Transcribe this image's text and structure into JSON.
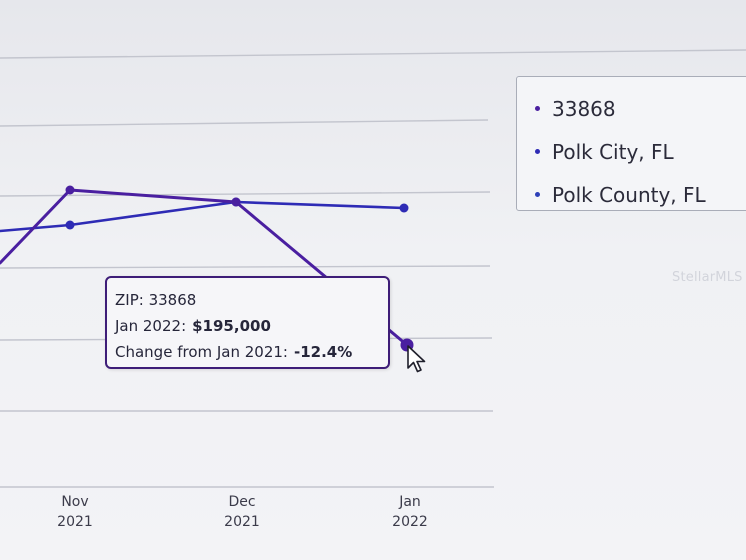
{
  "chart_data": {
    "type": "line",
    "categories": [
      "Nov 2021",
      "Dec 2021",
      "Jan 2022"
    ],
    "series": [
      {
        "name": "33868",
        "values": [
          null,
          null,
          195000
        ],
        "color": "#4a1fa0"
      },
      {
        "name": "Polk City, FL",
        "values": [
          null,
          null,
          null
        ],
        "color": "#2e2bb5"
      },
      {
        "name": "Polk County, FL",
        "values": [
          null,
          null,
          null
        ],
        "color": "#2d40b8"
      }
    ],
    "grid": true,
    "legend_position": "right"
  },
  "x_ticks": [
    {
      "month": "Nov",
      "year": "2021"
    },
    {
      "month": "Dec",
      "year": "2021"
    },
    {
      "month": "Jan",
      "year": "2022"
    }
  ],
  "legend": {
    "items": [
      {
        "label": "33868",
        "color": "#4a1fa0"
      },
      {
        "label": "Polk City, FL",
        "color": "#2e2bb5"
      },
      {
        "label": "Polk County, FL",
        "color": "#2d40b8"
      }
    ]
  },
  "tooltip": {
    "zip_line": "ZIP: 33868",
    "period_label": "Jan 2022:",
    "period_value": "$195,000",
    "change_label": "Change from Jan 2021:",
    "change_value": "-12.4%"
  },
  "watermark": "StellarMLS",
  "icons": {
    "cursor": "pointer-cursor-icon",
    "bullet": "legend-bullet-icon"
  }
}
